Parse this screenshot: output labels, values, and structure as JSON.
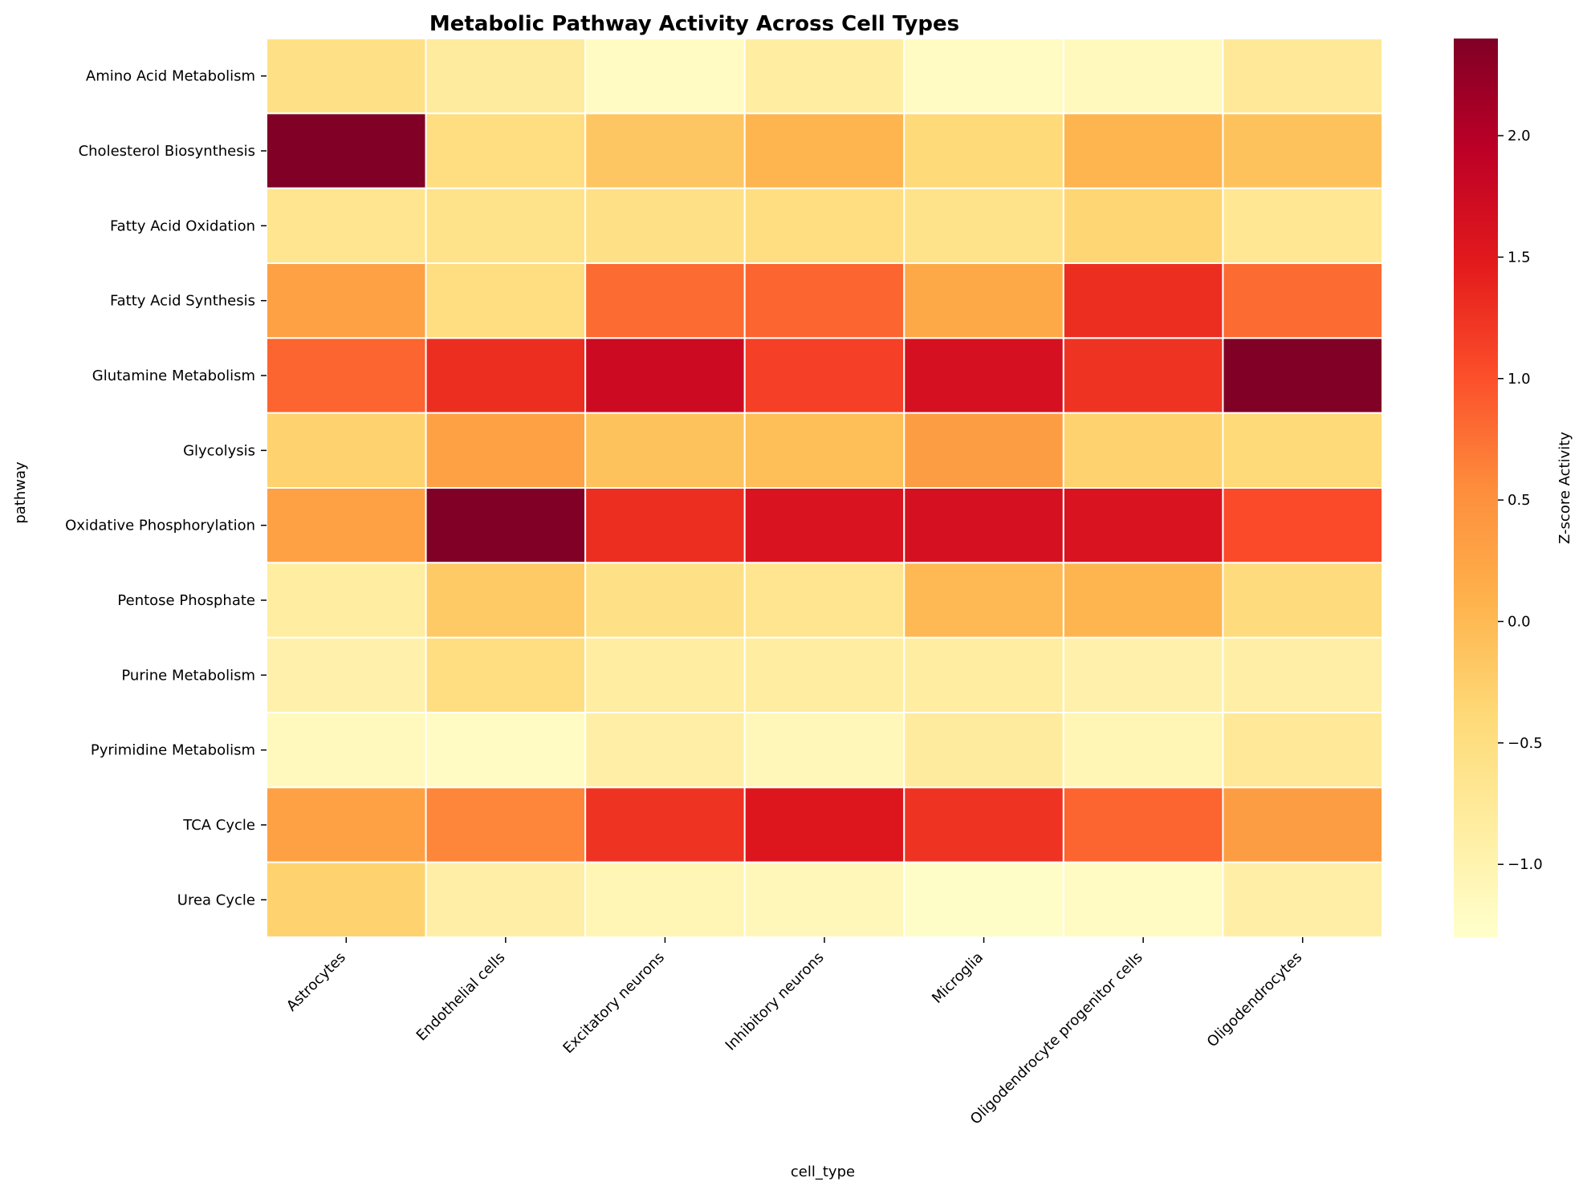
{
  "chart_data": {
    "type": "heatmap",
    "title": "Metabolic Pathway Activity Across Cell Types",
    "xlabel": "cell_type",
    "ylabel": "pathway",
    "colorbar_label": "Z-score Activity",
    "colormap": "YlOrRd",
    "vmin": -1.3,
    "vmax": 2.4,
    "colorbar_ticks": [
      2.0,
      1.5,
      1.0,
      0.5,
      0.0,
      -0.5,
      -1.0
    ],
    "colorbar_tick_labels": [
      "2.0",
      "1.5",
      "1.0",
      "0.5",
      "0.0",
      "−0.5",
      "−1.0"
    ],
    "x_categories": [
      "Astrocytes",
      "Endothelial cells",
      "Excitatory neurons",
      "Inhibitory neurons",
      "Microglia",
      "Oligodendrocyte progenitor cells",
      "Oligodendrocytes"
    ],
    "y_categories": [
      "Amino Acid Metabolism",
      "Cholesterol Biosynthesis",
      "Fatty Acid Oxidation",
      "Fatty Acid Synthesis",
      "Glutamine Metabolism",
      "Glycolysis",
      "Oxidative Phosphorylation",
      "Pentose Phosphate",
      "Purine Metabolism",
      "Pyrimidine Metabolism",
      "TCA Cycle",
      "Urea Cycle"
    ],
    "values": [
      [
        -0.55,
        -0.8,
        -1.2,
        -0.85,
        -1.2,
        -1.15,
        -0.75
      ],
      [
        2.4,
        -0.5,
        -0.15,
        0.05,
        -0.4,
        0.05,
        -0.1
      ],
      [
        -0.65,
        -0.6,
        -0.55,
        -0.5,
        -0.6,
        -0.35,
        -0.7
      ],
      [
        0.3,
        -0.5,
        0.8,
        0.85,
        0.2,
        1.3,
        0.8
      ],
      [
        0.85,
        1.3,
        1.75,
        1.15,
        1.65,
        1.25,
        2.4
      ],
      [
        -0.3,
        0.3,
        -0.1,
        -0.05,
        0.35,
        -0.3,
        -0.4
      ],
      [
        0.3,
        2.4,
        1.3,
        1.6,
        1.65,
        1.6,
        1.05
      ],
      [
        -0.85,
        -0.2,
        -0.55,
        -0.65,
        0.0,
        0.05,
        -0.45
      ],
      [
        -0.95,
        -0.5,
        -0.85,
        -0.85,
        -0.85,
        -0.95,
        -0.9
      ],
      [
        -1.15,
        -1.2,
        -0.9,
        -1.1,
        -0.8,
        -1.05,
        -0.75
      ],
      [
        0.3,
        0.6,
        1.25,
        1.55,
        1.25,
        0.85,
        0.35
      ],
      [
        -0.3,
        -0.9,
        -1.05,
        -1.1,
        -1.25,
        -1.2,
        -0.9
      ]
    ]
  }
}
